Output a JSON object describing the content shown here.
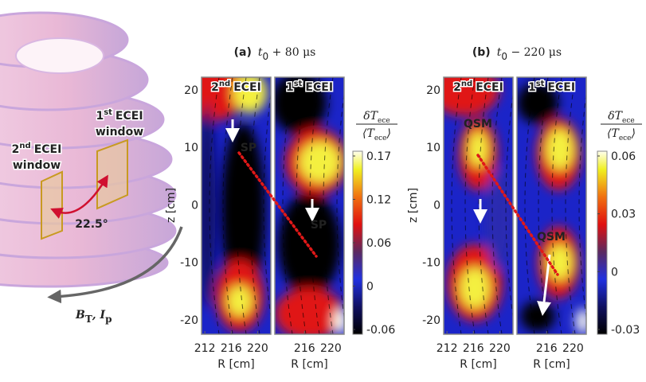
{
  "illustration": {
    "window_1": {
      "num": "1",
      "sup": "st",
      "text": "ECEI",
      "line2": "window"
    },
    "window_2": {
      "num": "2",
      "sup": "nd",
      "text": "ECEI",
      "line2": "window"
    },
    "angle": "22.5°",
    "field": {
      "b": "B",
      "b_sub": "T",
      "sep": ", ",
      "i": "I",
      "i_sub": "p"
    }
  },
  "panels": [
    {
      "tag": "(a)",
      "var": "t",
      "var_sub": "0",
      "rest": " + 80 μs",
      "y_axis": {
        "label": "z [cm]",
        "lim": [
          -22.5,
          22.2
        ],
        "ticks": [
          20,
          10,
          0,
          -10,
          -20
        ]
      },
      "x_label": "R [cm]",
      "x_lim": [
        211.5,
        222
      ],
      "subplots": [
        {
          "num": "2",
          "sup": "nd",
          "text": "ECEI",
          "x_ticks": [
            212,
            216,
            220
          ],
          "annotation": "SP"
        },
        {
          "num": "1",
          "sup": "st",
          "text": "ECEI",
          "x_ticks": [
            216,
            220
          ],
          "annotation": "SP"
        }
      ],
      "colorbar": {
        "num": "δT",
        "num_sub": "ece",
        "den": "⟨T",
        "den_sub": "ece",
        "den_end": "⟩",
        "ticks": [
          0.17,
          0.12,
          0.06,
          0,
          -0.06
        ]
      }
    },
    {
      "tag": "(b)",
      "var": "t",
      "var_sub": "0",
      "rest": " − 220 μs",
      "y_axis": {
        "label": "z [cm]",
        "lim": [
          -22.5,
          22.2
        ],
        "ticks": [
          20,
          10,
          0,
          -10,
          -20
        ]
      },
      "x_label": "R [cm]",
      "x_lim": [
        211.5,
        222
      ],
      "subplots": [
        {
          "num": "2",
          "sup": "nd",
          "text": "ECEI",
          "x_ticks": [
            212,
            216,
            220
          ],
          "annotation": "QSM"
        },
        {
          "num": "1",
          "sup": "st",
          "text": "ECEI",
          "x_ticks": [
            216,
            220
          ],
          "annotation": "QSM"
        }
      ],
      "colorbar": {
        "num": "δT",
        "num_sub": "ece",
        "den": "⟨T",
        "den_sub": "ece",
        "den_end": "⟩",
        "ticks": [
          0.06,
          0.03,
          0,
          -0.03
        ]
      }
    }
  ]
}
